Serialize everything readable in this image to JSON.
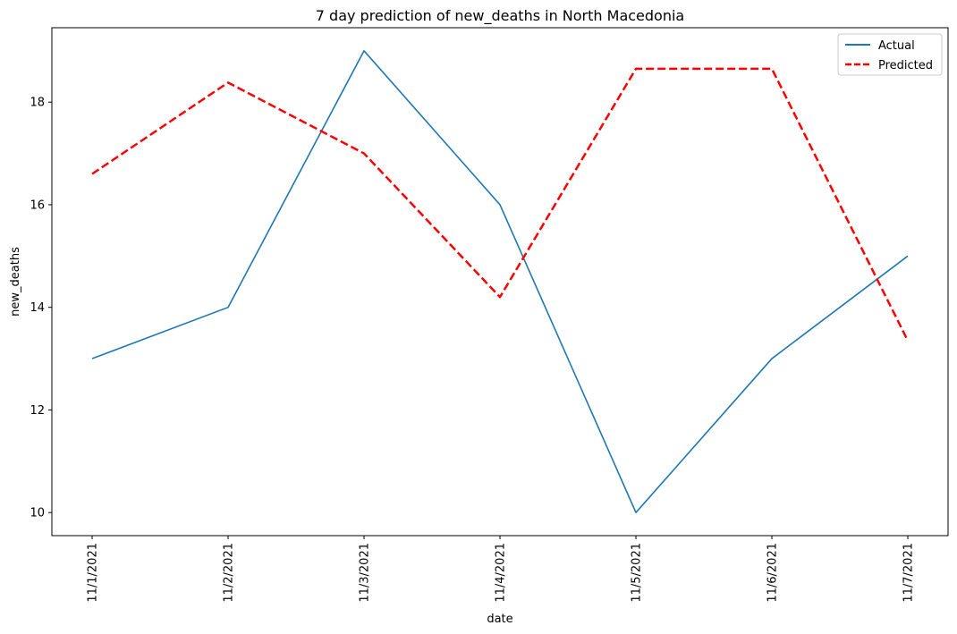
{
  "chart_data": {
    "type": "line",
    "title": "7 day prediction of new_deaths in North Macedonia",
    "xlabel": "date",
    "ylabel": "new_deaths",
    "categories": [
      "11/1/2021",
      "11/2/2021",
      "11/3/2021",
      "11/4/2021",
      "11/5/2021",
      "11/6/2021",
      "11/7/2021"
    ],
    "ylim": [
      9.55,
      19.45
    ],
    "yticks": [
      10,
      12,
      14,
      16,
      18
    ],
    "grid": false,
    "legend_position": "top-right",
    "series": [
      {
        "name": "Actual",
        "values": [
          13,
          14,
          19,
          16,
          10,
          13,
          15
        ],
        "color": "#1f77b4",
        "style": "solid"
      },
      {
        "name": "Predicted",
        "values": [
          16.6,
          18.38,
          17.0,
          14.2,
          18.65,
          18.65,
          13.35
        ],
        "color": "#ff0000",
        "style": "dashed"
      }
    ]
  }
}
